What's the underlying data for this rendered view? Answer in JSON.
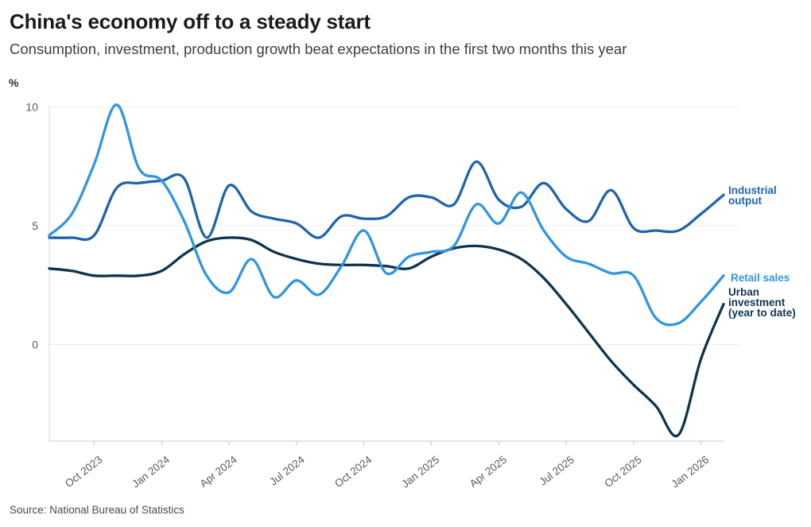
{
  "header": {
    "title": "China's economy off to a steady start",
    "subtitle": "Consumption, investment, production growth beat expectations in the first two months this year"
  },
  "footer": {
    "source": "Source: National Bureau of Statistics"
  },
  "chart_data": {
    "type": "line",
    "title": "China's economy off to a steady start",
    "ylabel": "%",
    "xlabel": "",
    "grid": "horizontal",
    "legend_position": "right of line ends",
    "y_ticks": [
      10,
      5,
      0
    ],
    "ylim": [
      -4.2,
      10.3
    ],
    "x": [
      "Aug 2023",
      "Sep 2023",
      "Oct 2023",
      "Nov 2023",
      "Dec 2023",
      "Jan 2024",
      "Feb 2024",
      "Mar 2024",
      "Apr 2024",
      "May 2024",
      "Jun 2024",
      "Jul 2024",
      "Aug 2024",
      "Sep 2024",
      "Oct 2024",
      "Nov 2024",
      "Dec 2024",
      "Jan 2025",
      "Feb 2025",
      "Mar 2025",
      "Apr 2025",
      "May 2025",
      "Jun 2025",
      "Jul 2025",
      "Aug 2025",
      "Sep 2025",
      "Oct 2025",
      "Nov 2025",
      "Dec 2025",
      "Jan 2026",
      "Feb 2026"
    ],
    "x_tick_labels": [
      "Oct 2023",
      "Jan 2024",
      "Apr 2024",
      "Jul 2024",
      "Oct 2024",
      "Jan 2025",
      "Apr 2025",
      "Jul 2025",
      "Oct 2025",
      "Jan 2026"
    ],
    "series": [
      {
        "name": "Industrial output",
        "label": "Industrial\noutput",
        "color": "#1e64ab",
        "values": [
          4.5,
          4.5,
          4.6,
          6.6,
          6.8,
          6.9,
          7.0,
          4.5,
          6.7,
          5.6,
          5.3,
          5.1,
          4.5,
          5.4,
          5.3,
          5.4,
          6.2,
          6.2,
          5.9,
          7.7,
          6.1,
          5.8,
          6.8,
          5.7,
          5.2,
          6.5,
          4.9,
          4.8,
          4.8,
          5.5,
          6.3
        ]
      },
      {
        "name": "Retail sales",
        "label": "Retail sales",
        "color": "#3295df",
        "values": [
          4.6,
          5.5,
          7.6,
          10.1,
          7.4,
          6.9,
          5.2,
          2.9,
          2.2,
          3.6,
          2.0,
          2.7,
          2.1,
          3.3,
          4.8,
          3.0,
          3.7,
          3.9,
          4.15,
          5.9,
          5.1,
          6.4,
          4.8,
          3.7,
          3.4,
          3.0,
          2.9,
          1.1,
          0.9,
          1.8,
          2.9
        ]
      },
      {
        "name": "Urban investment (year to date)",
        "label": "Urban\ninvestment\n(year to date)",
        "color": "#0f344f",
        "values": [
          3.2,
          3.1,
          2.9,
          2.9,
          2.9,
          3.1,
          3.8,
          4.35,
          4.5,
          4.4,
          3.9,
          3.6,
          3.4,
          3.35,
          3.35,
          3.3,
          3.2,
          3.7,
          4.05,
          4.15,
          4.0,
          3.6,
          2.8,
          1.7,
          0.5,
          -0.7,
          -1.7,
          -2.6,
          -3.8,
          -0.6,
          1.7
        ]
      }
    ],
    "style": {
      "gridline_color": "#ececec",
      "axis_line_color": "#c9c9c9",
      "tick_text_color": "#5a5a5a",
      "line_width": 3.3
    }
  }
}
